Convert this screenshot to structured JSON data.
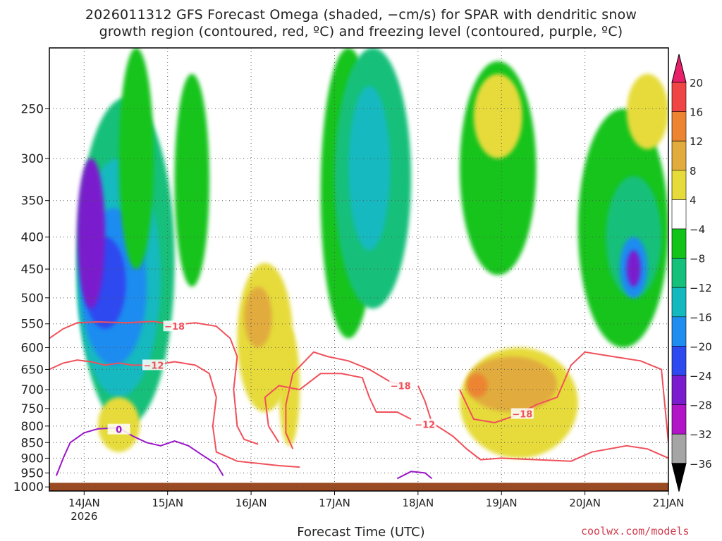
{
  "title_line1": "2026011312 GFS Forecast Omega (shaded, −cm/s) for SPAR with dendritic snow",
  "title_line2": "growth region (contoured, red, ºC) and freezing level (contoured, purple, ºC)",
  "xlabel": "Forecast Time (UTC)",
  "credit": "coolwx.com/models",
  "colors": {
    "ground": "#9b4a22",
    "dgz_contour": "#f0505a",
    "freezing_contour": "#9a17c8",
    "grid": "#555555"
  },
  "chart_data": {
    "type": "heatmap",
    "x": {
      "type": "time",
      "range": [
        "2026-01-13T14",
        "2026-01-21T00"
      ],
      "ticks": [
        {
          "time": "2026-01-14T00",
          "label": "14JAN",
          "sublabel": "2026"
        },
        {
          "time": "2026-01-15T00",
          "label": "15JAN"
        },
        {
          "time": "2026-01-16T00",
          "label": "16JAN"
        },
        {
          "time": "2026-01-17T00",
          "label": "17JAN"
        },
        {
          "time": "2026-01-18T00",
          "label": "18JAN"
        },
        {
          "time": "2026-01-19T00",
          "label": "19JAN"
        },
        {
          "time": "2026-01-20T00",
          "label": "20JAN"
        },
        {
          "time": "2026-01-21T00",
          "label": "21JAN"
        }
      ]
    },
    "y": {
      "type": "pressure",
      "range": [
        200,
        1015
      ],
      "ticks": [
        {
          "value": 250,
          "label": "250"
        },
        {
          "value": 300,
          "label": "300"
        },
        {
          "value": 350,
          "label": "350"
        },
        {
          "value": 400,
          "label": "400"
        },
        {
          "value": 450,
          "label": "450"
        },
        {
          "value": 500,
          "label": "500"
        },
        {
          "value": 550,
          "label": "550"
        },
        {
          "value": 600,
          "label": "600"
        },
        {
          "value": 650,
          "label": "650"
        },
        {
          "value": 700,
          "label": "700"
        },
        {
          "value": 750,
          "label": "750"
        },
        {
          "value": 800,
          "label": "800"
        },
        {
          "value": 850,
          "label": "850"
        },
        {
          "value": 900,
          "label": "900"
        },
        {
          "value": 950,
          "label": "950"
        },
        {
          "value": 1000,
          "label": "1000"
        }
      ]
    },
    "grid": "dotted",
    "colorbar": {
      "placement": "right",
      "ticks": [
        "20",
        "16",
        "12",
        "8",
        "4",
        "−4",
        "−8",
        "−12",
        "−16",
        "−20",
        "−24",
        "−28",
        "−32",
        "−36"
      ],
      "bins": [
        {
          "range": ">20",
          "color": "#e8206a"
        },
        {
          "range": "16 to 20",
          "color": "#f04545"
        },
        {
          "range": "12 to 16",
          "color": "#ec8432"
        },
        {
          "range": "8 to 12",
          "color": "#e1ac3d"
        },
        {
          "range": "4 to 8",
          "color": "#e6db3b"
        },
        {
          "range": "-4 to 4",
          "color": "#ffffff"
        },
        {
          "range": "-8 to -4",
          "color": "#12c41a"
        },
        {
          "range": "-12 to -8",
          "color": "#15c07a"
        },
        {
          "range": "-16 to -12",
          "color": "#14b9c0"
        },
        {
          "range": "-20 to -16",
          "color": "#1f8cf0"
        },
        {
          "range": "-24 to -20",
          "color": "#2d4af0"
        },
        {
          "range": "-28 to -24",
          "color": "#7a1ccd"
        },
        {
          "range": "-32 to -28",
          "color": "#b214c8"
        },
        {
          "range": "-36 to -32",
          "color": "#a5a5a5"
        },
        {
          "range": "<-36",
          "color": "#000000"
        }
      ]
    },
    "features": [
      {
        "cat": -2,
        "t0": "2026-01-13T22",
        "t1": "2026-01-15T02",
        "p0": 240,
        "p1": 800
      },
      {
        "cat": -3,
        "t0": "2026-01-13T22",
        "t1": "2026-01-14T22",
        "p0": 300,
        "p1": 720
      },
      {
        "cat": -4,
        "t0": "2026-01-13T23",
        "t1": "2026-01-14T18",
        "p0": 360,
        "p1": 640
      },
      {
        "cat": -5,
        "t0": "2026-01-14T00",
        "t1": "2026-01-14T12",
        "p0": 400,
        "p1": 560
      },
      {
        "cat": -6,
        "t0": "2026-01-13T22",
        "t1": "2026-01-14T06",
        "p0": 300,
        "p1": 520
      },
      {
        "cat": -1,
        "t0": "2026-01-14T10",
        "t1": "2026-01-14T20",
        "p0": 200,
        "p1": 450
      },
      {
        "cat": -1,
        "t0": "2026-01-15T02",
        "t1": "2026-01-15T12",
        "p0": 220,
        "p1": 480
      },
      {
        "cat": -1,
        "t0": "2026-01-16T20",
        "t1": "2026-01-17T12",
        "p0": 200,
        "p1": 580
      },
      {
        "cat": -2,
        "t0": "2026-01-17T00",
        "t1": "2026-01-17T22",
        "p0": 200,
        "p1": 520
      },
      {
        "cat": -3,
        "t0": "2026-01-17T04",
        "t1": "2026-01-17T16",
        "p0": 230,
        "p1": 420
      },
      {
        "cat": -1,
        "t0": "2026-01-18T12",
        "t1": "2026-01-19T10",
        "p0": 210,
        "p1": 460
      },
      {
        "cat": -1,
        "t0": "2026-01-19T22",
        "t1": "2026-01-21T00",
        "p0": 250,
        "p1": 600
      },
      {
        "cat": -2,
        "t0": "2026-01-20T06",
        "t1": "2026-01-20T22",
        "p0": 320,
        "p1": 500
      },
      {
        "cat": -4,
        "t0": "2026-01-20T10",
        "t1": "2026-01-20T18",
        "p0": 400,
        "p1": 500
      },
      {
        "cat": -6,
        "t0": "2026-01-20T12",
        "t1": "2026-01-20T16",
        "p0": 420,
        "p1": 480
      },
      {
        "cat": 1,
        "t0": "2026-01-15T20",
        "t1": "2026-01-16T12",
        "p0": 440,
        "p1": 760
      },
      {
        "cat": 2,
        "t0": "2026-01-15T22",
        "t1": "2026-01-16T06",
        "p0": 480,
        "p1": 600
      },
      {
        "cat": 1,
        "t0": "2026-01-16T08",
        "t1": "2026-01-16T14",
        "p0": 560,
        "p1": 860
      },
      {
        "cat": 1,
        "t0": "2026-01-18T12",
        "t1": "2026-01-19T22",
        "p0": 600,
        "p1": 900
      },
      {
        "cat": 2,
        "t0": "2026-01-18T14",
        "t1": "2026-01-19T16",
        "p0": 620,
        "p1": 760
      },
      {
        "cat": 3,
        "t0": "2026-01-18T14",
        "t1": "2026-01-18T20",
        "p0": 660,
        "p1": 720
      },
      {
        "cat": 1,
        "t0": "2026-01-18T16",
        "t1": "2026-01-19T06",
        "p0": 220,
        "p1": 300
      },
      {
        "cat": 1,
        "t0": "2026-01-20T12",
        "t1": "2026-01-21T00",
        "p0": 220,
        "p1": 290
      },
      {
        "cat": 1,
        "t0": "2026-01-14T04",
        "t1": "2026-01-14T16",
        "p0": 720,
        "p1": 880
      }
    ],
    "series": [
      {
        "color_key": "dgz_contour",
        "label": "−18",
        "label_at": [
          "2026-01-15T02",
          555
        ],
        "points": [
          [
            "2026-01-13T14",
            580
          ],
          [
            "2026-01-13T18",
            560
          ],
          [
            "2026-01-13T22",
            548
          ],
          [
            "2026-01-14T04",
            546
          ],
          [
            "2026-01-14T12",
            548
          ],
          [
            "2026-01-14T20",
            545
          ],
          [
            "2026-01-15T02",
            552
          ],
          [
            "2026-01-15T08",
            548
          ],
          [
            "2026-01-15T14",
            555
          ],
          [
            "2026-01-15T18",
            580
          ],
          [
            "2026-01-15T20",
            620
          ],
          [
            "2026-01-15T19",
            700
          ],
          [
            "2026-01-15T20",
            800
          ],
          [
            "2026-01-15T22",
            840
          ],
          [
            "2026-01-16T02",
            855
          ]
        ]
      },
      {
        "color_key": "dgz_contour",
        "label": "−12",
        "label_at": [
          "2026-01-14T20",
          640
        ],
        "points": [
          [
            "2026-01-13T14",
            650
          ],
          [
            "2026-01-13T18",
            635
          ],
          [
            "2026-01-13T22",
            628
          ],
          [
            "2026-01-14T02",
            632
          ],
          [
            "2026-01-14T06",
            640
          ],
          [
            "2026-01-14T10",
            635
          ],
          [
            "2026-01-14T14",
            640
          ],
          [
            "2026-01-14T20",
            640
          ],
          [
            "2026-01-15T02",
            632
          ],
          [
            "2026-01-15T08",
            640
          ],
          [
            "2026-01-15T12",
            660
          ],
          [
            "2026-01-15T14",
            720
          ],
          [
            "2026-01-15T13",
            800
          ],
          [
            "2026-01-15T14",
            880
          ],
          [
            "2026-01-15T20",
            910
          ],
          [
            "2026-01-16T08",
            925
          ],
          [
            "2026-01-16T14",
            930
          ]
        ]
      },
      {
        "color_key": "dgz_contour",
        "label": "−18",
        "points": [
          [
            "2026-01-16T08",
            850
          ],
          [
            "2026-01-16T05",
            800
          ],
          [
            "2026-01-16T04",
            720
          ],
          [
            "2026-01-16T08",
            690
          ],
          [
            "2026-01-16T14",
            700
          ],
          [
            "2026-01-16T20",
            660
          ],
          [
            "2026-01-17T02",
            660
          ],
          [
            "2026-01-17T08",
            670
          ],
          [
            "2026-01-17T10",
            720
          ],
          [
            "2026-01-17T12",
            760
          ],
          [
            "2026-01-17T18",
            760
          ],
          [
            "2026-01-17T22",
            780
          ]
        ]
      },
      {
        "color_key": "dgz_contour",
        "label": "−18",
        "label_at": [
          "2026-01-17T19",
          690
        ],
        "points": [
          [
            "2026-01-16T12",
            870
          ],
          [
            "2026-01-16T10",
            820
          ],
          [
            "2026-01-16T10",
            740
          ],
          [
            "2026-01-16T12",
            660
          ],
          [
            "2026-01-16T18",
            610
          ],
          [
            "2026-01-16T22",
            620
          ],
          [
            "2026-01-17T04",
            630
          ],
          [
            "2026-01-17T10",
            650
          ],
          [
            "2026-01-17T16",
            680
          ],
          [
            "2026-01-17T20",
            690
          ]
        ]
      },
      {
        "color_key": "dgz_contour",
        "label": "−12",
        "label_at": [
          "2026-01-18T02",
          795
        ],
        "points": [
          [
            "2026-01-18T00",
            690
          ],
          [
            "2026-01-18T02",
            730
          ],
          [
            "2026-01-18T04",
            790
          ],
          [
            "2026-01-18T10",
            830
          ],
          [
            "2026-01-18T14",
            870
          ],
          [
            "2026-01-18T18",
            905
          ],
          [
            "2026-01-19T00",
            900
          ],
          [
            "2026-01-19T10",
            905
          ],
          [
            "2026-01-19T20",
            910
          ],
          [
            "2026-01-20T02",
            880
          ],
          [
            "2026-01-20T12",
            860
          ],
          [
            "2026-01-20T18",
            870
          ],
          [
            "2026-01-21T00",
            900
          ]
        ]
      },
      {
        "color_key": "dgz_contour",
        "label": "−18",
        "label_at": [
          "2026-01-19T06",
          765
        ],
        "points": [
          [
            "2026-01-18T12",
            700
          ],
          [
            "2026-01-18T16",
            780
          ],
          [
            "2026-01-18T22",
            790
          ],
          [
            "2026-01-19T04",
            770
          ],
          [
            "2026-01-19T10",
            740
          ],
          [
            "2026-01-19T16",
            720
          ],
          [
            "2026-01-19T20",
            640
          ],
          [
            "2026-01-20T00",
            610
          ],
          [
            "2026-01-20T08",
            620
          ],
          [
            "2026-01-20T16",
            630
          ],
          [
            "2026-01-20T22",
            650
          ],
          [
            "2026-01-21T00",
            850
          ]
        ]
      },
      {
        "color_key": "freezing_contour",
        "label": "0",
        "label_at": [
          "2026-01-14T10",
          810
        ],
        "points": [
          [
            "2026-01-13T16",
            960
          ],
          [
            "2026-01-13T18",
            900
          ],
          [
            "2026-01-13T20",
            850
          ],
          [
            "2026-01-14T00",
            820
          ],
          [
            "2026-01-14T04",
            808
          ],
          [
            "2026-01-14T10",
            805
          ],
          [
            "2026-01-14T14",
            830
          ],
          [
            "2026-01-14T18",
            850
          ],
          [
            "2026-01-14T22",
            860
          ],
          [
            "2026-01-15T02",
            845
          ],
          [
            "2026-01-15T06",
            860
          ],
          [
            "2026-01-15T10",
            890
          ],
          [
            "2026-01-15T14",
            920
          ],
          [
            "2026-01-15T16",
            960
          ]
        ]
      },
      {
        "color_key": "freezing_contour",
        "label": "0",
        "points": [
          [
            "2026-01-17T18",
            970
          ],
          [
            "2026-01-17T22",
            945
          ],
          [
            "2026-01-18T02",
            950
          ],
          [
            "2026-01-18T04",
            970
          ]
        ]
      }
    ],
    "ground_pressure": 985
  }
}
